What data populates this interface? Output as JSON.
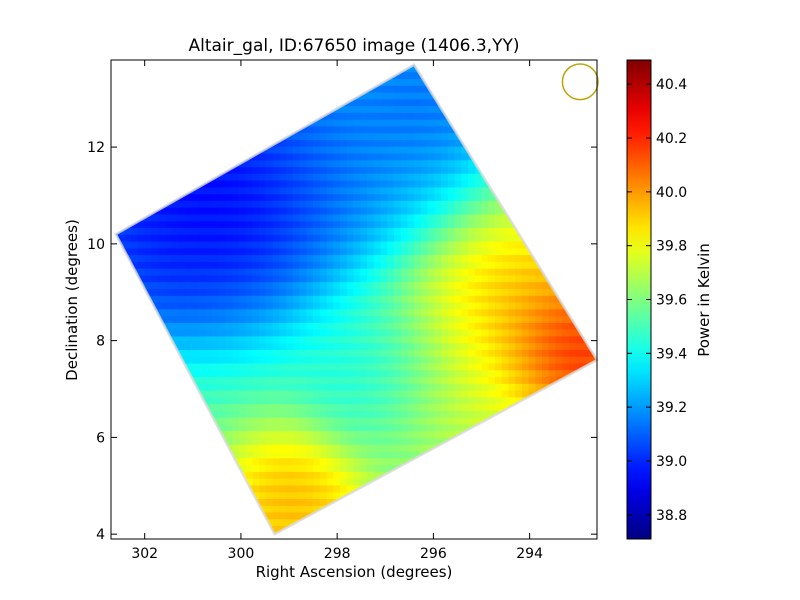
{
  "chart_data": {
    "type": "heatmap",
    "title": "Altair_gal, ID:67650 image (1406.3,YY)",
    "xlabel": "Right Ascension (degrees)",
    "ylabel": "Declination (degrees)",
    "colorbar_label": "Power in Kelvin",
    "xlim": [
      302.7,
      292.6
    ],
    "ylim": [
      3.9,
      13.8
    ],
    "x_ticks": [
      302,
      300,
      298,
      296,
      294
    ],
    "y_ticks": [
      4,
      6,
      8,
      10,
      12
    ],
    "colorbar_range": [
      38.71,
      40.49
    ],
    "colorbar_ticks": [
      "38.8",
      "39.0",
      "39.2",
      "39.4",
      "39.6",
      "39.8",
      "40.0",
      "40.2",
      "40.4"
    ],
    "colormap": "jet",
    "footprint_corners": [
      {
        "ra": 302.6,
        "dec": 10.2
      },
      {
        "ra": 296.4,
        "dec": 13.7
      },
      {
        "ra": 292.6,
        "dec": 7.6
      },
      {
        "ra": 299.3,
        "dec": 4.0
      }
    ],
    "beam_marker": {
      "ra": 292.95,
      "dec": 13.35,
      "radius_deg": 0.37,
      "color": "#bfa20a"
    },
    "field_features": [
      {
        "ra": 300.5,
        "dec": 11.0,
        "value": 38.75,
        "spread_deg": 1.6
      },
      {
        "ra": 302.0,
        "dec": 10.0,
        "value": 38.95,
        "spread_deg": 1.0
      },
      {
        "ra": 297.8,
        "dec": 12.3,
        "value": 39.1,
        "spread_deg": 1.5
      },
      {
        "ra": 296.2,
        "dec": 13.0,
        "value": 39.05,
        "spread_deg": 0.9
      },
      {
        "ra": 293.2,
        "dec": 7.7,
        "value": 40.45,
        "spread_deg": 0.8
      },
      {
        "ra": 294.3,
        "dec": 8.5,
        "value": 40.05,
        "spread_deg": 1.2
      },
      {
        "ra": 295.5,
        "dec": 7.0,
        "value": 39.75,
        "spread_deg": 1.3
      },
      {
        "ra": 299.0,
        "dec": 4.5,
        "value": 40.05,
        "spread_deg": 0.9
      },
      {
        "ra": 297.2,
        "dec": 7.3,
        "value": 39.35,
        "spread_deg": 0.9
      }
    ],
    "background_value": 39.55,
    "grid": false
  }
}
